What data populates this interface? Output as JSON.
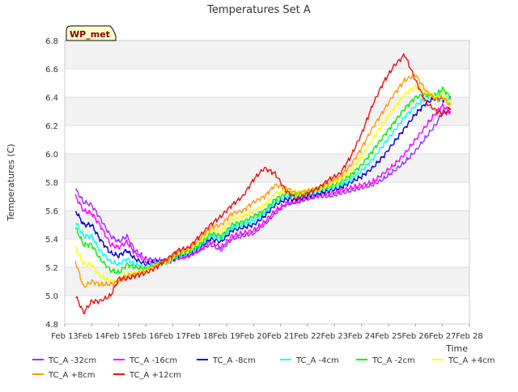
{
  "chart_data": {
    "type": "line",
    "title": "Temperatures Set A",
    "xlabel": "Time",
    "ylabel": "Temperatures (C)",
    "badge": "WP_met",
    "ylim": [
      4.8,
      6.8
    ],
    "yticks": [
      4.8,
      5.0,
      5.2,
      5.4,
      5.6,
      5.8,
      6.0,
      6.2,
      6.4,
      6.6,
      6.8
    ],
    "ytick_labels": [
      "4.8",
      "5.0",
      "5.2",
      "5.4",
      "5.6",
      "5.8",
      "6.0",
      "6.2",
      "6.4",
      "6.6",
      "6.8"
    ],
    "xlim": [
      13,
      28
    ],
    "xticks": [
      13,
      14,
      15,
      16,
      17,
      18,
      19,
      20,
      21,
      22,
      23,
      24,
      25,
      26,
      27,
      28
    ],
    "xtick_labels": [
      "Feb 13",
      "Feb 14",
      "Feb 15",
      "Feb 16",
      "Feb 17",
      "Feb 18",
      "Feb 19",
      "Feb 20",
      "Feb 21",
      "Feb 22",
      "Feb 23",
      "Feb 24",
      "Feb 25",
      "Feb 26",
      "Feb 27",
      "Feb 28"
    ],
    "grid": true,
    "banded_background": true,
    "legend_position": "bottom",
    "series": [
      {
        "name": "TC_A -32cm",
        "color": "#9b30ff",
        "x": [
          13.4,
          13.7,
          14.0,
          14.3,
          14.7,
          15.0,
          15.3,
          15.6,
          16.0,
          16.4,
          16.8,
          17.2,
          17.6,
          18.0,
          18.4,
          18.8,
          19.2,
          19.6,
          20.0,
          20.4,
          20.8,
          21.2,
          21.6,
          22.0,
          22.4,
          22.8,
          23.2,
          23.6,
          24.0,
          24.4,
          24.8,
          25.2,
          25.6,
          26.0,
          26.4,
          26.8,
          27.0,
          27.3
        ],
        "y": [
          5.75,
          5.66,
          5.64,
          5.55,
          5.42,
          5.38,
          5.42,
          5.32,
          5.26,
          5.25,
          5.24,
          5.27,
          5.28,
          5.32,
          5.36,
          5.32,
          5.4,
          5.42,
          5.44,
          5.5,
          5.58,
          5.64,
          5.66,
          5.68,
          5.7,
          5.7,
          5.72,
          5.74,
          5.76,
          5.78,
          5.82,
          5.88,
          5.94,
          6.02,
          6.12,
          6.22,
          6.3,
          6.28
        ]
      },
      {
        "name": "TC_A -16cm",
        "color": "#ff00ff",
        "x": [
          13.4,
          13.7,
          14.0,
          14.3,
          14.7,
          15.0,
          15.3,
          15.6,
          16.0,
          16.4,
          16.8,
          17.2,
          17.6,
          18.0,
          18.4,
          18.8,
          19.2,
          19.6,
          20.0,
          20.4,
          20.8,
          21.2,
          21.6,
          22.0,
          22.4,
          22.8,
          23.2,
          23.6,
          24.0,
          24.4,
          24.8,
          25.2,
          25.6,
          26.0,
          26.4,
          26.8,
          27.0,
          27.3
        ],
        "y": [
          5.7,
          5.6,
          5.58,
          5.5,
          5.36,
          5.34,
          5.38,
          5.3,
          5.24,
          5.24,
          5.23,
          5.26,
          5.28,
          5.32,
          5.38,
          5.34,
          5.42,
          5.44,
          5.46,
          5.52,
          5.6,
          5.65,
          5.66,
          5.69,
          5.71,
          5.72,
          5.74,
          5.76,
          5.78,
          5.8,
          5.86,
          5.92,
          6.0,
          6.1,
          6.2,
          6.3,
          6.34,
          6.3
        ]
      },
      {
        "name": "TC_A -8cm",
        "color": "#0000cd",
        "x": [
          13.4,
          13.7,
          14.0,
          14.3,
          14.7,
          15.0,
          15.3,
          15.6,
          16.0,
          16.4,
          16.8,
          17.2,
          17.6,
          18.0,
          18.4,
          18.8,
          19.2,
          19.6,
          20.0,
          20.4,
          20.8,
          21.2,
          21.6,
          22.0,
          22.4,
          22.8,
          23.2,
          23.6,
          24.0,
          24.4,
          24.8,
          25.2,
          25.6,
          26.0,
          26.4,
          26.8,
          27.0,
          27.3
        ],
        "y": [
          5.6,
          5.5,
          5.5,
          5.4,
          5.3,
          5.28,
          5.32,
          5.26,
          5.22,
          5.24,
          5.24,
          5.28,
          5.3,
          5.34,
          5.4,
          5.38,
          5.46,
          5.48,
          5.5,
          5.56,
          5.64,
          5.68,
          5.68,
          5.7,
          5.72,
          5.74,
          5.76,
          5.8,
          5.84,
          5.9,
          5.98,
          6.08,
          6.18,
          6.28,
          6.36,
          6.4,
          6.38,
          6.4
        ]
      },
      {
        "name": "TC_A -4cm",
        "color": "#00ffff",
        "x": [
          13.4,
          13.7,
          14.0,
          14.3,
          14.7,
          15.0,
          15.3,
          15.6,
          16.0,
          16.4,
          16.8,
          17.2,
          17.6,
          18.0,
          18.4,
          18.8,
          19.2,
          19.6,
          20.0,
          20.4,
          20.8,
          21.2,
          21.6,
          22.0,
          22.4,
          22.8,
          23.2,
          23.6,
          24.0,
          24.4,
          24.8,
          25.2,
          25.6,
          26.0,
          26.4,
          26.8,
          27.0,
          27.3
        ],
        "y": [
          5.52,
          5.42,
          5.42,
          5.32,
          5.24,
          5.22,
          5.26,
          5.22,
          5.2,
          5.23,
          5.24,
          5.28,
          5.3,
          5.35,
          5.42,
          5.4,
          5.48,
          5.5,
          5.53,
          5.58,
          5.66,
          5.7,
          5.7,
          5.72,
          5.74,
          5.76,
          5.78,
          5.82,
          5.88,
          5.96,
          6.06,
          6.16,
          6.26,
          6.34,
          6.4,
          6.42,
          6.4,
          6.38
        ]
      },
      {
        "name": "TC_A -2cm",
        "color": "#00ee00",
        "x": [
          13.4,
          13.7,
          14.0,
          14.3,
          14.7,
          15.0,
          15.3,
          15.6,
          16.0,
          16.4,
          16.8,
          17.2,
          17.6,
          18.0,
          18.4,
          18.8,
          19.2,
          19.6,
          20.0,
          20.4,
          20.8,
          21.2,
          21.6,
          22.0,
          22.4,
          22.8,
          23.2,
          23.6,
          24.0,
          24.4,
          24.8,
          25.2,
          25.6,
          26.0,
          26.4,
          26.8,
          27.0,
          27.3
        ],
        "y": [
          5.48,
          5.36,
          5.36,
          5.26,
          5.18,
          5.16,
          5.22,
          5.2,
          5.19,
          5.22,
          5.24,
          5.29,
          5.31,
          5.36,
          5.44,
          5.42,
          5.5,
          5.52,
          5.56,
          5.6,
          5.68,
          5.72,
          5.72,
          5.73,
          5.75,
          5.77,
          5.8,
          5.85,
          5.92,
          6.02,
          6.12,
          6.22,
          6.32,
          6.4,
          6.42,
          6.42,
          6.46,
          6.4
        ]
      },
      {
        "name": "TC_A +4cm",
        "color": "#ffff00",
        "x": [
          13.4,
          13.7,
          14.0,
          14.3,
          14.7,
          15.0,
          15.3,
          15.6,
          16.0,
          16.4,
          16.8,
          17.2,
          17.6,
          18.0,
          18.4,
          18.8,
          19.2,
          19.6,
          20.0,
          20.4,
          20.8,
          21.2,
          21.6,
          22.0,
          22.4,
          22.8,
          23.2,
          23.6,
          24.0,
          24.4,
          24.8,
          25.2,
          25.6,
          26.0,
          26.4,
          26.8,
          27.0,
          27.3
        ],
        "y": [
          5.34,
          5.22,
          5.22,
          5.14,
          5.1,
          5.1,
          5.16,
          5.16,
          5.18,
          5.22,
          5.24,
          5.3,
          5.32,
          5.38,
          5.46,
          5.46,
          5.54,
          5.56,
          5.6,
          5.64,
          5.72,
          5.74,
          5.73,
          5.74,
          5.76,
          5.78,
          5.82,
          5.88,
          5.98,
          6.1,
          6.22,
          6.32,
          6.42,
          6.48,
          6.44,
          6.4,
          6.42,
          6.36
        ]
      },
      {
        "name": "TC_A +8cm",
        "color": "#ff9900",
        "x": [
          13.4,
          13.7,
          14.0,
          14.3,
          14.7,
          15.0,
          15.3,
          15.6,
          16.0,
          16.4,
          16.8,
          17.2,
          17.6,
          18.0,
          18.4,
          18.8,
          19.2,
          19.6,
          20.0,
          20.4,
          20.8,
          21.2,
          21.6,
          22.0,
          22.4,
          22.8,
          23.2,
          23.6,
          24.0,
          24.4,
          24.8,
          25.2,
          25.6,
          26.0,
          26.4,
          26.8,
          27.0,
          27.3
        ],
        "y": [
          5.24,
          5.06,
          5.1,
          5.08,
          5.08,
          5.1,
          5.14,
          5.15,
          5.18,
          5.22,
          5.25,
          5.31,
          5.33,
          5.4,
          5.48,
          5.5,
          5.58,
          5.6,
          5.66,
          5.7,
          5.78,
          5.76,
          5.72,
          5.74,
          5.76,
          5.8,
          5.84,
          5.92,
          6.04,
          6.18,
          6.3,
          6.42,
          6.52,
          6.56,
          6.44,
          6.38,
          6.4,
          6.34
        ]
      },
      {
        "name": "TC_A +12cm",
        "color": "#ee1111",
        "x": [
          13.4,
          13.7,
          14.0,
          14.3,
          14.7,
          15.0,
          15.3,
          15.6,
          16.0,
          16.4,
          16.8,
          17.2,
          17.6,
          18.0,
          18.4,
          18.8,
          19.2,
          19.6,
          20.0,
          20.4,
          20.8,
          21.2,
          21.6,
          22.0,
          22.4,
          22.8,
          23.2,
          23.6,
          24.0,
          24.4,
          24.8,
          25.2,
          25.6,
          26.0,
          26.4,
          26.8,
          27.0,
          27.3
        ],
        "y": [
          5.0,
          4.88,
          4.96,
          4.96,
          5.0,
          5.12,
          5.12,
          5.14,
          5.16,
          5.2,
          5.26,
          5.32,
          5.34,
          5.42,
          5.5,
          5.56,
          5.64,
          5.7,
          5.82,
          5.9,
          5.86,
          5.74,
          5.68,
          5.72,
          5.76,
          5.82,
          5.86,
          5.98,
          6.14,
          6.34,
          6.5,
          6.62,
          6.7,
          6.52,
          6.36,
          6.3,
          6.28,
          6.32
        ]
      }
    ]
  }
}
